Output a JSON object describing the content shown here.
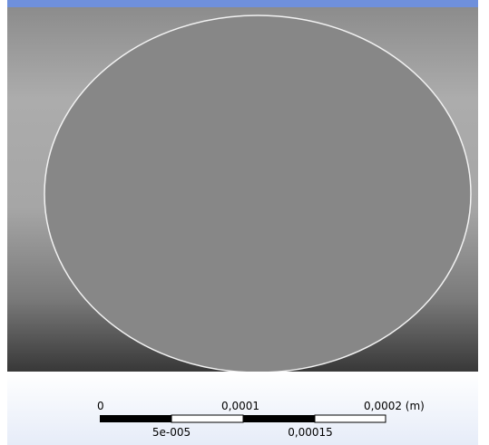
{
  "scale_bar": {
    "top_labels": [
      "0",
      "0,0001",
      "0,0002 (m)"
    ],
    "bottom_labels": [
      "5e-005",
      "0,00015"
    ]
  }
}
